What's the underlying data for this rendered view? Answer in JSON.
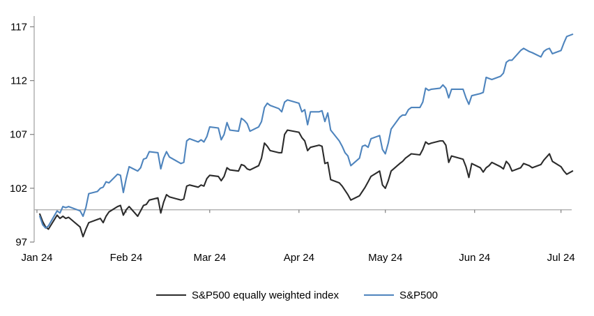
{
  "chart_data": {
    "type": "line",
    "title": "",
    "x_axis": {
      "tick_labels": [
        "Jan 24",
        "Feb 24",
        "Mar 24",
        "Apr 24",
        "May 24",
        "Jun 24",
        "Jul 24"
      ],
      "month_start_day_index": [
        0,
        31,
        60,
        91,
        121,
        152,
        182
      ]
    },
    "y_axis": {
      "ticks": [
        97,
        102,
        107,
        112,
        117
      ],
      "range": [
        97,
        118
      ]
    },
    "reference_line_value": 100,
    "legend_position": "bottom-center",
    "grid": "off",
    "dates": [
      "01-02",
      "01-03",
      "01-04",
      "01-05",
      "01-08",
      "01-09",
      "01-10",
      "01-11",
      "01-12",
      "01-16",
      "01-17",
      "01-18",
      "01-19",
      "01-22",
      "01-23",
      "01-24",
      "01-25",
      "01-26",
      "01-29",
      "01-30",
      "01-31",
      "02-01",
      "02-02",
      "02-05",
      "02-06",
      "02-07",
      "02-08",
      "02-09",
      "02-12",
      "02-13",
      "02-14",
      "02-15",
      "02-16",
      "02-20",
      "02-21",
      "02-22",
      "02-23",
      "02-26",
      "02-27",
      "02-28",
      "02-29",
      "03-01",
      "03-04",
      "03-05",
      "03-06",
      "03-07",
      "03-08",
      "03-11",
      "03-12",
      "03-13",
      "03-14",
      "03-15",
      "03-18",
      "03-19",
      "03-20",
      "03-21",
      "03-22",
      "03-25",
      "03-26",
      "03-27",
      "03-28",
      "04-01",
      "04-02",
      "04-03",
      "04-04",
      "04-05",
      "04-08",
      "04-09",
      "04-10",
      "04-11",
      "04-12",
      "04-15",
      "04-16",
      "04-17",
      "04-18",
      "04-19",
      "04-22",
      "04-23",
      "04-24",
      "04-25",
      "04-26",
      "04-29",
      "04-30",
      "05-01",
      "05-02",
      "05-03",
      "05-06",
      "05-07",
      "05-08",
      "05-09",
      "05-10",
      "05-13",
      "05-14",
      "05-15",
      "05-16",
      "05-17",
      "05-20",
      "05-21",
      "05-22",
      "05-23",
      "05-24",
      "05-28",
      "05-29",
      "05-30",
      "05-31",
      "06-03",
      "06-04",
      "06-05",
      "06-06",
      "06-07",
      "06-10",
      "06-11",
      "06-12",
      "06-13",
      "06-14",
      "06-17",
      "06-18",
      "06-20",
      "06-21",
      "06-24",
      "06-25",
      "06-26",
      "06-27",
      "06-28",
      "07-01",
      "07-02",
      "07-03",
      "07-05"
    ],
    "series": [
      {
        "name": "S&P500 equally weighted index",
        "color": "#2b2b2b",
        "values": [
          99.6,
          98.9,
          98.4,
          98.2,
          99.5,
          99.2,
          99.4,
          99.2,
          99.3,
          98.4,
          97.5,
          98.2,
          98.8,
          99.1,
          99.2,
          98.8,
          99.4,
          99.8,
          100.3,
          100.4,
          99.5,
          100.0,
          100.3,
          99.4,
          99.9,
          100.4,
          100.5,
          100.9,
          101.1,
          99.7,
          100.7,
          101.4,
          101.2,
          100.9,
          101.0,
          102.2,
          102.3,
          102.1,
          102.3,
          102.2,
          102.9,
          103.2,
          103.1,
          102.7,
          103.1,
          103.9,
          103.7,
          103.6,
          104.2,
          104.1,
          103.8,
          103.7,
          104.1,
          104.8,
          106.2,
          105.9,
          105.5,
          105.3,
          105.3,
          107.0,
          107.4,
          107.2,
          106.7,
          106.4,
          105.5,
          105.8,
          106.0,
          105.9,
          104.3,
          104.4,
          102.8,
          102.5,
          102.2,
          101.8,
          101.4,
          100.9,
          101.3,
          101.7,
          102.1,
          102.6,
          103.1,
          103.6,
          102.3,
          102.0,
          102.7,
          103.6,
          104.3,
          104.5,
          104.8,
          105.0,
          105.2,
          105.1,
          105.6,
          106.3,
          106.1,
          106.2,
          106.4,
          106.4,
          106.0,
          104.4,
          105.0,
          104.7,
          104.0,
          103.0,
          104.3,
          103.9,
          103.5,
          103.9,
          104.1,
          104.4,
          104.0,
          103.8,
          104.5,
          104.2,
          103.6,
          103.9,
          104.3,
          104.1,
          103.9,
          104.2,
          104.6,
          104.9,
          105.2,
          104.5,
          104.0,
          103.6,
          103.3,
          103.6
        ]
      },
      {
        "name": "S&P500",
        "color": "#4e84bd",
        "values": [
          99.4,
          98.6,
          98.3,
          98.5,
          99.9,
          99.7,
          100.3,
          100.2,
          100.3,
          99.9,
          99.4,
          100.2,
          101.5,
          101.7,
          102.0,
          102.1,
          102.6,
          102.5,
          103.3,
          103.2,
          101.6,
          102.9,
          104.0,
          103.6,
          103.9,
          104.7,
          104.8,
          105.4,
          105.3,
          103.8,
          104.8,
          105.4,
          104.9,
          104.3,
          104.4,
          106.4,
          106.6,
          106.3,
          106.5,
          106.3,
          106.8,
          107.7,
          107.6,
          106.5,
          107.0,
          108.1,
          107.4,
          107.3,
          108.5,
          108.3,
          108.0,
          107.3,
          107.7,
          108.2,
          109.5,
          109.9,
          109.7,
          109.4,
          109.1,
          110.0,
          110.2,
          109.9,
          109.1,
          109.3,
          107.9,
          109.1,
          109.1,
          109.2,
          108.2,
          109.0,
          107.4,
          106.4,
          105.9,
          105.3,
          105.0,
          104.1,
          104.8,
          105.9,
          106.0,
          105.8,
          106.6,
          106.9,
          105.6,
          105.2,
          106.2,
          107.5,
          108.6,
          108.8,
          108.8,
          109.3,
          109.5,
          109.5,
          110.0,
          111.3,
          111.1,
          111.2,
          111.3,
          111.6,
          111.3,
          110.4,
          111.2,
          111.2,
          110.4,
          109.8,
          110.6,
          110.8,
          110.9,
          112.3,
          112.2,
          112.1,
          112.4,
          112.7,
          113.7,
          113.9,
          113.9,
          114.8,
          115.0,
          114.7,
          114.6,
          114.2,
          114.7,
          114.9,
          115.0,
          114.5,
          114.8,
          115.5,
          116.1,
          116.3
        ]
      }
    ]
  },
  "colors": {
    "background": "#ffffff",
    "axis_line": "#a6a6a6",
    "tick_mark": "#7f7f7f",
    "text": "#000000",
    "series_ew": "#2b2b2b",
    "series_sp": "#4e84bd"
  }
}
